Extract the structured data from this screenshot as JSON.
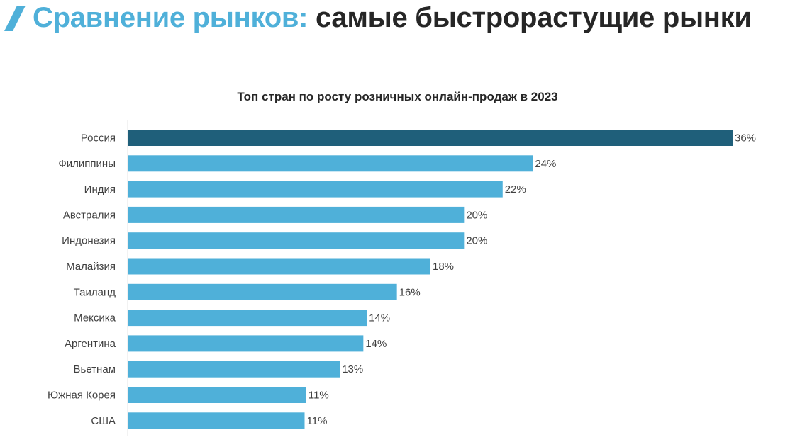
{
  "header": {
    "title_part1": "Сравнение рынков:",
    "title_part2": "самые быстрорастущие рынки",
    "accent_color": "#4fb0d9",
    "icon": "slash-icon"
  },
  "chart_data": {
    "type": "bar",
    "orientation": "horizontal",
    "title": "Топ стран по росту розничных онлайн-продаж в 2023",
    "xlabel": "",
    "ylabel": "",
    "xlim": [
      0,
      36
    ],
    "grid": false,
    "categories": [
      "Россия",
      "Филиппины",
      "Индия",
      "Австралия",
      "Индонезия",
      "Малайзия",
      "Таиланд",
      "Мексика",
      "Аргентина",
      "Вьетнам",
      "Южная Корея",
      "США"
    ],
    "values": [
      36,
      24.1,
      22.3,
      20,
      20,
      18,
      16,
      14.2,
      14,
      12.6,
      10.6,
      10.5
    ],
    "labels": [
      "36%",
      "24%",
      "22%",
      "20%",
      "20%",
      "18%",
      "16%",
      "14%",
      "14%",
      "13%",
      "11%",
      "11%"
    ],
    "colors": [
      "#1f5f7a",
      "#4fb0d9",
      "#4fb0d9",
      "#4fb0d9",
      "#4fb0d9",
      "#4fb0d9",
      "#4fb0d9",
      "#4fb0d9",
      "#4fb0d9",
      "#4fb0d9",
      "#4fb0d9",
      "#4fb0d9"
    ],
    "highlight_color": "#1f5f7a",
    "bar_color": "#4fb0d9"
  }
}
